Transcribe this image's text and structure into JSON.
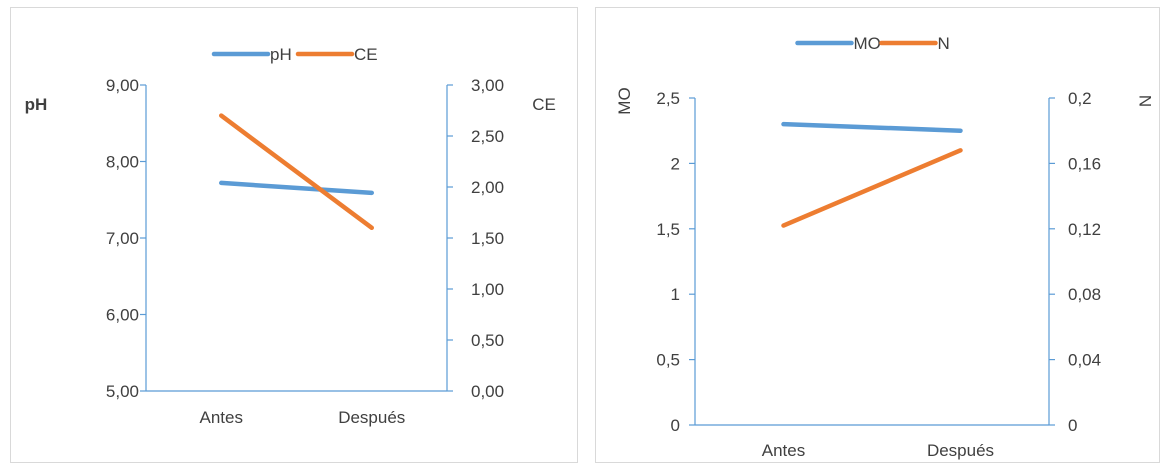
{
  "chart_data": [
    {
      "type": "line",
      "categories": [
        "Antes",
        "Después"
      ],
      "series": [
        {
          "name": "pH",
          "axis": "left",
          "color": "#5b9bd5",
          "values": [
            7.72,
            7.59
          ]
        },
        {
          "name": "CE",
          "axis": "right",
          "color": "#ed7d31",
          "values": [
            2.7,
            1.6
          ]
        }
      ],
      "left_axis": {
        "label": "pH",
        "ylim": [
          5.0,
          9.0
        ],
        "ticks": [
          "5,00",
          "6,00",
          "7,00",
          "8,00",
          "9,00"
        ]
      },
      "right_axis": {
        "label": "CE",
        "ylim": [
          0.0,
          3.0
        ],
        "ticks": [
          "0,00",
          "0,50",
          "1,00",
          "1,50",
          "2,00",
          "2,50",
          "3,00"
        ]
      },
      "legend": "top-center",
      "grid": false
    },
    {
      "type": "line",
      "categories": [
        "Antes",
        "Después"
      ],
      "series": [
        {
          "name": "MO",
          "axis": "left",
          "color": "#5b9bd5",
          "values": [
            2.3,
            2.25
          ]
        },
        {
          "name": "N",
          "axis": "right",
          "color": "#ed7d31",
          "values": [
            0.122,
            0.168
          ]
        }
      ],
      "left_axis": {
        "label": "MO",
        "ylim": [
          0,
          2.5
        ],
        "ticks": [
          "0",
          "0,5",
          "1",
          "1,5",
          "2",
          "2,5"
        ]
      },
      "right_axis": {
        "label": "N",
        "ylim": [
          0,
          0.2
        ],
        "ticks": [
          "0",
          "0,04",
          "0,08",
          "0,12",
          "0,16",
          "0,2"
        ]
      },
      "legend": "top-center",
      "grid": false
    }
  ]
}
